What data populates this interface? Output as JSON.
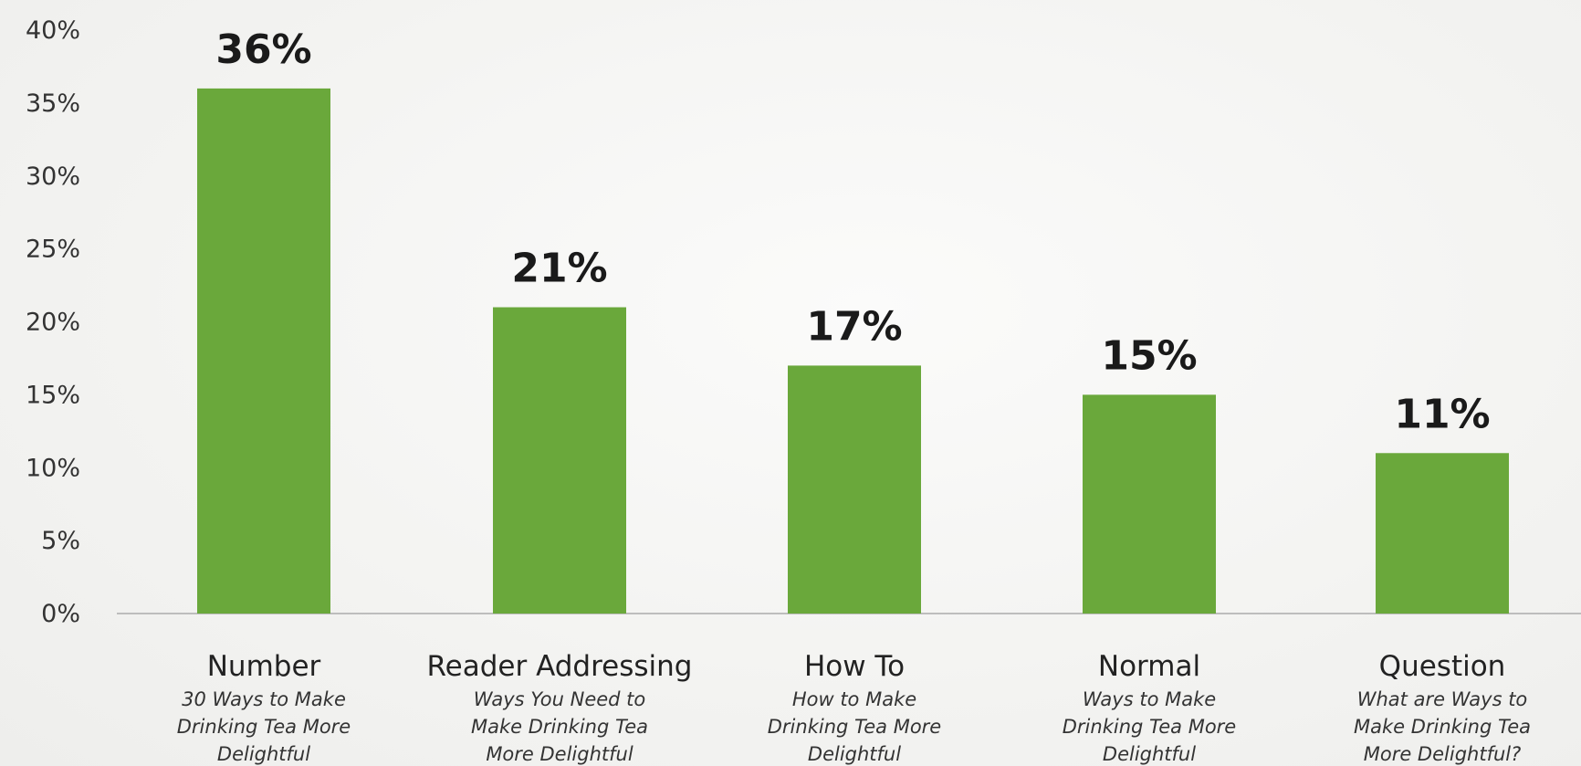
{
  "chart_data": {
    "type": "bar",
    "categories": [
      "Number",
      "Reader Addressing",
      "How To",
      "Normal",
      "Question"
    ],
    "subtitles": [
      [
        "30 Ways to Make",
        "Drinking Tea More",
        "Delightful"
      ],
      [
        "Ways You Need to",
        "Make Drinking Tea",
        "More Delightful"
      ],
      [
        "How to Make",
        "Drinking Tea More",
        "Delightful"
      ],
      [
        "Ways to Make",
        "Drinking Tea More",
        "Delightful"
      ],
      [
        "What are Ways to",
        "Make Drinking Tea",
        "More Delightful?"
      ]
    ],
    "values": [
      36,
      21,
      17,
      15,
      11
    ],
    "value_labels": [
      "36%",
      "21%",
      "17%",
      "15%",
      "11%"
    ],
    "yticks": [
      "0%",
      "5%",
      "10%",
      "15%",
      "20%",
      "25%",
      "30%",
      "35%",
      "40%"
    ],
    "ylim": [
      0,
      40
    ],
    "grid": false,
    "bar_color": "#6aa83b",
    "axis_color": "#bdbdbd"
  }
}
